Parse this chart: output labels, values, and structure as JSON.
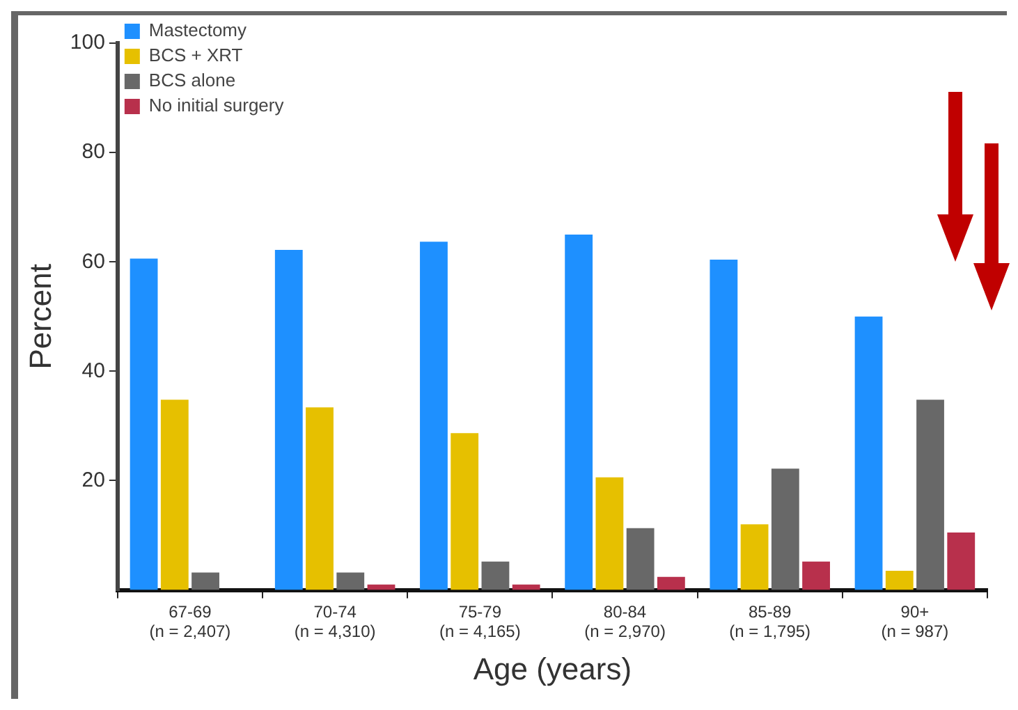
{
  "chart_data": {
    "type": "bar",
    "categories": [
      "67-69\n(n = 2,407)",
      "70-74\n(n = 4,310)",
      "75-79\n(n = 4,165)",
      "80-84\n(n = 2,970)",
      "85-89\n(n = 1,795)",
      "90+\n(n = 987)"
    ],
    "series": [
      {
        "name": "Mastectomy",
        "color": "#1e90ff",
        "values": [
          60.6,
          62.2,
          63.7,
          65,
          60.4,
          50
        ]
      },
      {
        "name": "BCS + XRT",
        "color": "#e6c000",
        "values": [
          34.8,
          33.4,
          28.7,
          20.6,
          12,
          3.5
        ]
      },
      {
        "name": "BCS alone",
        "color": "#686868",
        "values": [
          3.2,
          3.2,
          5.2,
          11.3,
          22.2,
          34.8
        ]
      },
      {
        "name": "No initial surgery",
        "color": "#b8304c",
        "values": [
          0,
          1,
          1,
          2.4,
          5.2,
          10.5
        ]
      }
    ],
    "xlabel": "Age (years)",
    "ylabel": "Percent",
    "ylim": [
      0,
      100
    ],
    "yticks": [
      20,
      40,
      60,
      80,
      100
    ],
    "grid": false,
    "legend": "top left"
  }
}
